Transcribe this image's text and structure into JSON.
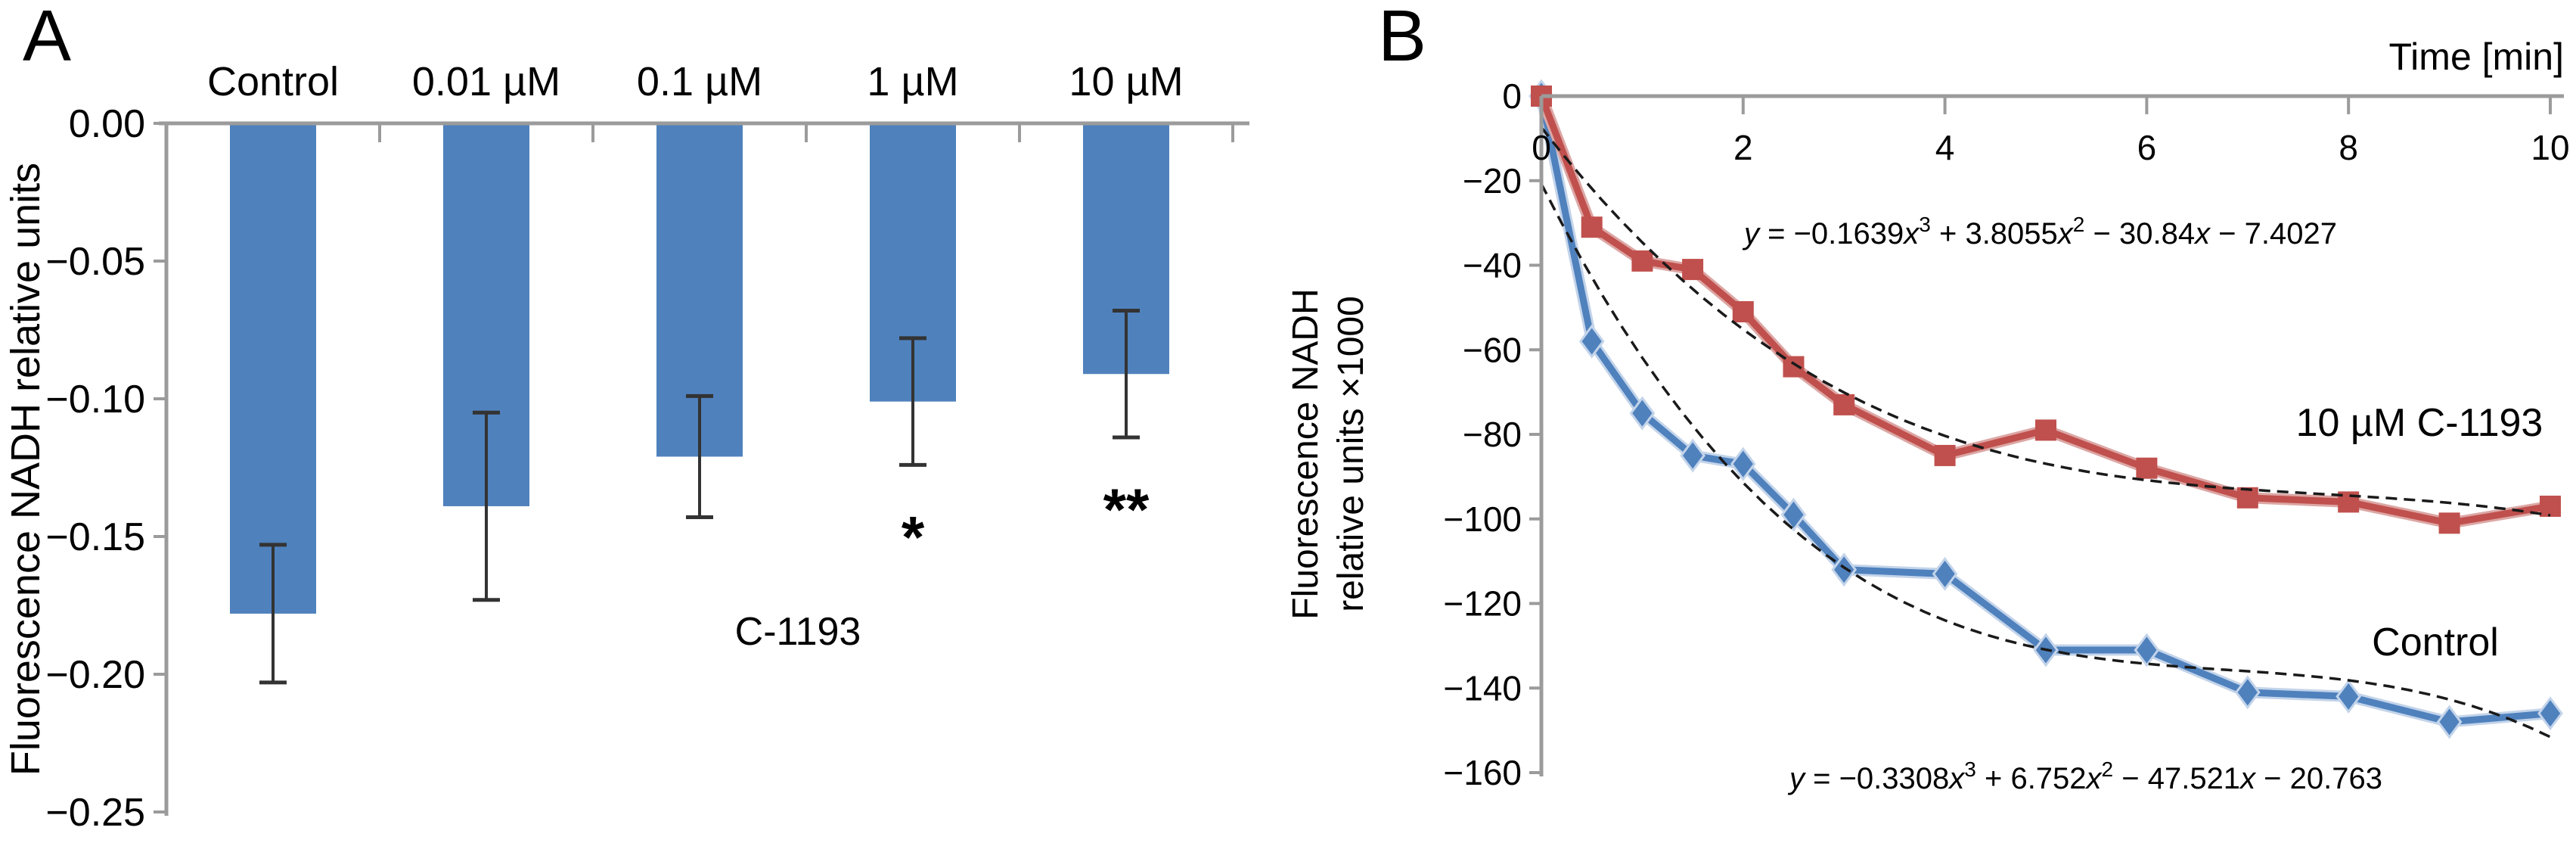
{
  "panel_a": {
    "label": "A",
    "chart_data": {
      "type": "bar",
      "ylabel": "Fluorescence NADH relative units",
      "annotation": "C-1193",
      "categories": [
        "Control",
        "0.01 µM",
        "0.1 µM",
        "1 µM",
        "10 µM"
      ],
      "values": [
        -0.178,
        -0.139,
        -0.121,
        -0.101,
        -0.091
      ],
      "errors": [
        0.025,
        0.034,
        0.022,
        0.023,
        0.023
      ],
      "significance": [
        "",
        "",
        "",
        "*",
        "**"
      ],
      "ylim": [
        0,
        -0.25
      ],
      "ytick_values": [
        0,
        -0.05,
        -0.1,
        -0.15,
        -0.2,
        -0.25
      ],
      "ytick_labels": [
        "0.00",
        "−0.05",
        "−0.10",
        "−0.15",
        "−0.20",
        "−0.25"
      ],
      "bar_color": "#4f81bd",
      "error_color": "#333333",
      "axis_color": "#9b9b9b"
    }
  },
  "panel_b": {
    "label": "B",
    "chart_data": {
      "type": "line",
      "xlabel": "Time [min]",
      "ylabel_lines": [
        "Fluorescence NADH",
        "relative units ×1000"
      ],
      "xlim": [
        0,
        10
      ],
      "ylim": [
        0,
        -160
      ],
      "xtick_values": [
        0,
        2,
        4,
        6,
        8,
        10
      ],
      "xtick_labels": [
        "0",
        "2",
        "4",
        "6",
        "8",
        "10"
      ],
      "ytick_values": [
        0,
        -20,
        -40,
        -60,
        -80,
        -100,
        -120,
        -140,
        -160
      ],
      "ytick_labels": [
        "0",
        "−20",
        "−40",
        "−60",
        "−80",
        "−100",
        "−120",
        "−140",
        "−160"
      ],
      "x": [
        0,
        0.5,
        1,
        1.5,
        2,
        2.5,
        3,
        4,
        5,
        6,
        7,
        8,
        9,
        10
      ],
      "series": [
        {
          "name": "10 µM C-1193",
          "color": "#c0504d",
          "halo": "#dca7a5",
          "marker": "square",
          "values": [
            0,
            -31,
            -39,
            -41,
            -51,
            -64,
            -73,
            -85,
            -79,
            -88,
            -95,
            -96,
            -101,
            -97
          ],
          "trendline": {
            "coeffs": [
              -0.1639,
              3.8055,
              -30.84,
              -7.4027
            ],
            "equation": "y = −0.1639x³ + 3.8055x² − 30.84x − 7.4027"
          }
        },
        {
          "name": "Control",
          "color": "#4f81bd",
          "halo": "#c3d4ea",
          "marker": "diamond",
          "values": [
            0,
            -58,
            -75,
            -85,
            -87,
            -99,
            -112,
            -113,
            -131,
            -131,
            -141,
            -142,
            -148,
            -146
          ],
          "trendline": {
            "coeffs": [
              -0.3308,
              6.752,
              -47.521,
              -20.763
            ],
            "equation": "y = −0.3308x³ + 6.752x² − 47.521x − 20.763"
          }
        }
      ],
      "trendline_color": "#1a1a1a",
      "axis_color": "#9b9b9b"
    }
  }
}
